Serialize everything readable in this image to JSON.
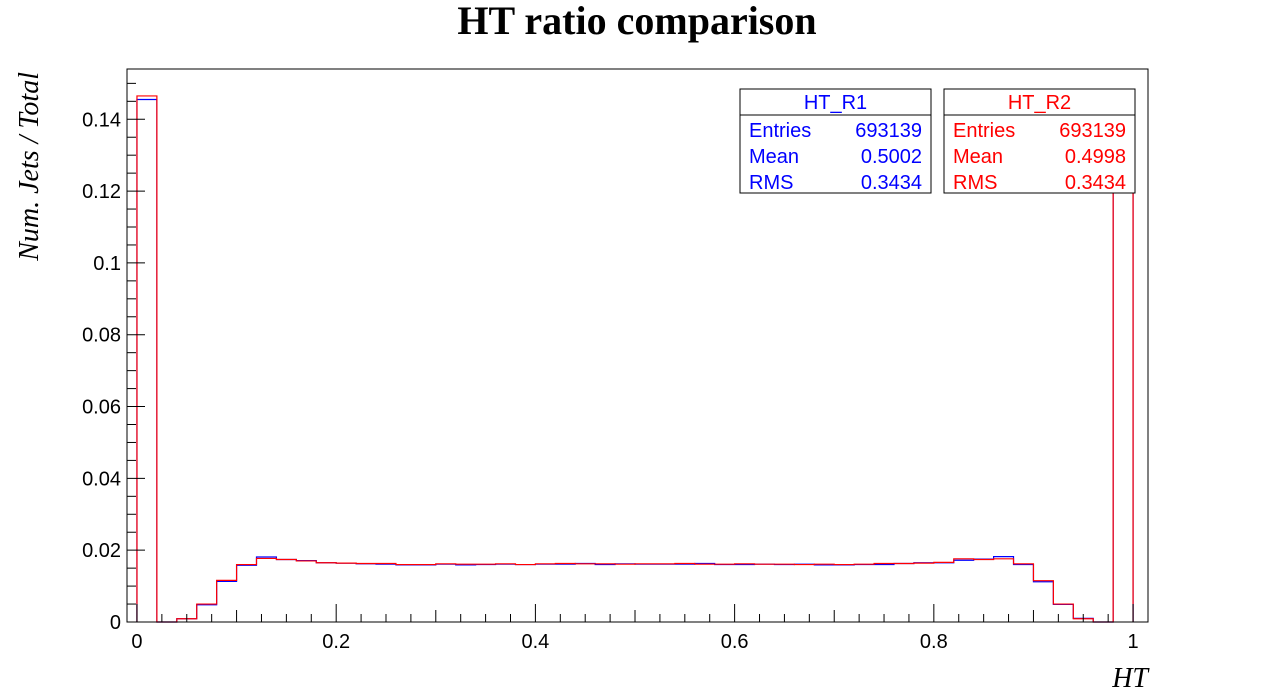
{
  "chart_data": {
    "type": "histogram",
    "title": "HT ratio comparison",
    "xlabel": "HT",
    "ylabel": "Num. Jets / Total",
    "xlim": [
      -0.01,
      1.015
    ],
    "ylim": [
      0,
      0.154
    ],
    "bins": 50,
    "bin_range": [
      0,
      1
    ],
    "x_ticks": [
      {
        "value": 0,
        "label": "0"
      },
      {
        "value": 0.2,
        "label": "0.2"
      },
      {
        "value": 0.4,
        "label": "0.4"
      },
      {
        "value": 0.6,
        "label": "0.6"
      },
      {
        "value": 0.8,
        "label": "0.8"
      },
      {
        "value": 1,
        "label": "1"
      }
    ],
    "y_ticks": [
      {
        "value": 0,
        "label": "0"
      },
      {
        "value": 0.02,
        "label": "0.02"
      },
      {
        "value": 0.04,
        "label": "0.04"
      },
      {
        "value": 0.06,
        "label": "0.06"
      },
      {
        "value": 0.08,
        "label": "0.08"
      },
      {
        "value": 0.1,
        "label": "0.1"
      },
      {
        "value": 0.12,
        "label": "0.12"
      },
      {
        "value": 0.14,
        "label": "0.14"
      }
    ],
    "grid": false,
    "series": [
      {
        "name": "HT_R1",
        "color": "#0000ff",
        "values": [
          0.1455,
          0,
          0.0009,
          0.0048,
          0.0113,
          0.0158,
          0.0181,
          0.0174,
          0.0171,
          0.0165,
          0.0164,
          0.0162,
          0.0161,
          0.0159,
          0.0159,
          0.0161,
          0.0159,
          0.016,
          0.0161,
          0.016,
          0.0161,
          0.0161,
          0.0163,
          0.016,
          0.0162,
          0.0161,
          0.0161,
          0.0161,
          0.0163,
          0.016,
          0.016,
          0.0161,
          0.016,
          0.0161,
          0.0159,
          0.0159,
          0.016,
          0.016,
          0.0163,
          0.0165,
          0.0165,
          0.0172,
          0.0175,
          0.0182,
          0.016,
          0.0112,
          0.0049,
          0.001,
          0,
          0.1455
        ],
        "stats": {
          "title": "HT_R1",
          "entries_label": "Entries",
          "entries": "693139",
          "mean_label": "Mean",
          "mean": "0.5002",
          "rms_label": "RMS",
          "rms": "0.3434"
        }
      },
      {
        "name": "HT_R2",
        "color": "#ff0000",
        "values": [
          0.1465,
          0,
          0.0009,
          0.005,
          0.0116,
          0.016,
          0.0177,
          0.0174,
          0.017,
          0.0165,
          0.0164,
          0.0163,
          0.0163,
          0.016,
          0.016,
          0.0162,
          0.0161,
          0.0161,
          0.0162,
          0.016,
          0.0162,
          0.0163,
          0.0162,
          0.0162,
          0.0161,
          0.0162,
          0.0162,
          0.0163,
          0.0161,
          0.0161,
          0.0162,
          0.0161,
          0.0161,
          0.016,
          0.0161,
          0.016,
          0.0161,
          0.0163,
          0.0163,
          0.0164,
          0.0166,
          0.0176,
          0.0174,
          0.0176,
          0.0162,
          0.0115,
          0.005,
          0.0009,
          0,
          0.1465
        ],
        "stats": {
          "title": "HT_R2",
          "entries_label": "Entries",
          "entries": "693139",
          "mean_label": "Mean",
          "mean": "0.4998",
          "rms_label": "RMS",
          "rms": "0.3434"
        }
      }
    ]
  }
}
